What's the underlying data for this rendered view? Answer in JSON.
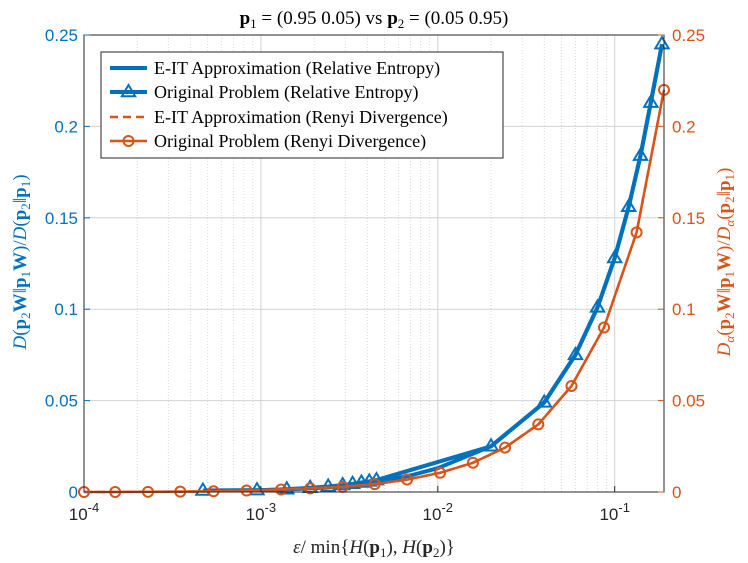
{
  "chart_data": {
    "type": "line",
    "title": "p₁ = (0.95 0.05) vs p₂ = (0.05 0.95)",
    "xlabel": "ε/ min{H(p₁), H(p₂)}",
    "ylabel_left": "D(p₂W‖p₁W)/D(p₂‖p₁)",
    "ylabel_right": "Dα(p₂W‖p₁W)/Dα(p₂‖p₁)",
    "xscale": "log",
    "xlim": [
      0.0001,
      0.19
    ],
    "ylim": [
      0,
      0.25
    ],
    "ylim_right": [
      0,
      0.25
    ],
    "x_ticks": [
      {
        "value": 0.0001,
        "base": "10",
        "exp": "-4"
      },
      {
        "value": 0.001,
        "base": "10",
        "exp": "-3"
      },
      {
        "value": 0.01,
        "base": "10",
        "exp": "-2"
      },
      {
        "value": 0.1,
        "base": "10",
        "exp": "-1"
      }
    ],
    "y_ticks": [
      "0",
      "0.05",
      "0.1",
      "0.15",
      "0.2",
      "0.25"
    ],
    "y_tick_values": [
      0,
      0.05,
      0.1,
      0.15,
      0.2,
      0.25
    ],
    "legend_position": "top-left",
    "colors": {
      "blue": "#0072BD",
      "orange": "#D95319",
      "grid": "#b0b0b0"
    },
    "series": [
      {
        "name": "E-IT Approximation (Relative Entropy)",
        "color": "#0072BD",
        "style": "solid",
        "marker": "none",
        "width": 4,
        "axis": "left",
        "x": [
          0.00047,
          0.0007,
          0.00095,
          0.0013,
          0.002,
          0.003,
          0.0045,
          0.007,
          0.01,
          0.02,
          0.04,
          0.06,
          0.08,
          0.1,
          0.12,
          0.14,
          0.16,
          0.185
        ],
        "y": [
          0.0008,
          0.0009,
          0.001,
          0.0013,
          0.002,
          0.0033,
          0.0055,
          0.009,
          0.013,
          0.025,
          0.049,
          0.075,
          0.101,
          0.128,
          0.156,
          0.184,
          0.213,
          0.245
        ]
      },
      {
        "name": "Original Problem (Relative Entropy)",
        "color": "#0072BD",
        "style": "solid",
        "marker": "triangle",
        "width": 4,
        "axis": "left",
        "x": [
          0.00047,
          0.00095,
          0.0014,
          0.0019,
          0.0024,
          0.0029,
          0.0033,
          0.0037,
          0.0041,
          0.0045,
          0.02,
          0.04,
          0.06,
          0.08,
          0.1,
          0.12,
          0.14,
          0.16,
          0.185
        ],
        "y": [
          0.0008,
          0.001,
          0.0015,
          0.0023,
          0.003,
          0.0038,
          0.0045,
          0.0052,
          0.0058,
          0.0065,
          0.025,
          0.049,
          0.075,
          0.101,
          0.128,
          0.156,
          0.184,
          0.213,
          0.245
        ]
      },
      {
        "name": "E-IT Approximation (Renyi Divergence)",
        "color": "#D95319",
        "style": "dashed",
        "marker": "none",
        "width": 2.5,
        "axis": "right",
        "x": [
          0.0001,
          0.00015,
          0.00023,
          0.00035,
          0.00054,
          0.00083,
          0.0013,
          0.0019,
          0.0029,
          0.0044,
          0.0067,
          0.0103,
          0.0158,
          0.024,
          0.037,
          0.057,
          0.087,
          0.133,
          0.19
        ],
        "y": [
          0.0,
          0.0,
          0.0001,
          0.0002,
          0.0004,
          0.0008,
          0.0014,
          0.002,
          0.0028,
          0.0043,
          0.0068,
          0.0105,
          0.016,
          0.0243,
          0.037,
          0.058,
          0.09,
          0.142,
          0.22
        ]
      },
      {
        "name": "Original Problem (Renyi Divergence)",
        "color": "#D95319",
        "style": "solid",
        "marker": "circle",
        "width": 2.5,
        "axis": "right",
        "x": [
          0.0001,
          0.00015,
          0.00023,
          0.00035,
          0.00054,
          0.00083,
          0.0013,
          0.0019,
          0.0029,
          0.0044,
          0.0067,
          0.0103,
          0.0158,
          0.024,
          0.037,
          0.057,
          0.087,
          0.133,
          0.19
        ],
        "y": [
          0.0,
          0.0,
          0.0001,
          0.0002,
          0.0004,
          0.0008,
          0.0014,
          0.002,
          0.0028,
          0.0043,
          0.0068,
          0.0105,
          0.016,
          0.0243,
          0.037,
          0.058,
          0.09,
          0.142,
          0.22
        ]
      }
    ]
  }
}
